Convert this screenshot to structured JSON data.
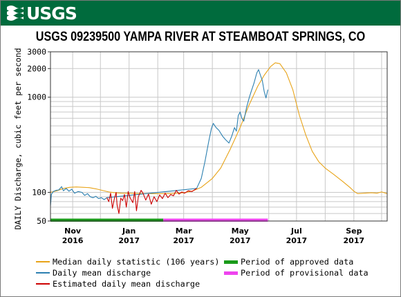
{
  "header": {
    "logo_text": "USGS",
    "logo_icon": "usgs-wave-icon"
  },
  "chart_data": {
    "type": "line",
    "title": "USGS 09239500 YAMPA RIVER AT STEAMBOAT SPRINGS, CO",
    "ylabel": "DAILY Discharge, cubic feet per second",
    "xlabel": "",
    "yscale": "log",
    "ylim": [
      50,
      3000
    ],
    "xlim": [
      "2016-10-08",
      "2017-10-07"
    ],
    "y_ticks": [
      50,
      100,
      1000,
      2000,
      3000
    ],
    "x_ticks": [
      {
        "date": "2016-11-01",
        "label": "Nov",
        "year": "2016"
      },
      {
        "date": "2017-01-01",
        "label": "Jan",
        "year": "2017"
      },
      {
        "date": "2017-03-01",
        "label": "Mar",
        "year": "2017"
      },
      {
        "date": "2017-05-01",
        "label": "May",
        "year": "2017"
      },
      {
        "date": "2017-07-01",
        "label": "Jul",
        "year": "2017"
      },
      {
        "date": "2017-09-01",
        "label": "Sep",
        "year": "2017"
      }
    ],
    "grid": true,
    "legend_position": "bottom",
    "colors": {
      "median": "#e8a317",
      "daily": "#2b7fb0",
      "estimated": "#cc0000",
      "approved": "#1a9a1a",
      "provisional": "#ee44ee"
    },
    "series": [
      {
        "name": "Median daily statistic (106 years)",
        "color": "#e8a317",
        "points": [
          [
            "2016-10-08",
            100
          ],
          [
            "2016-10-15",
            104
          ],
          [
            "2016-10-22",
            110
          ],
          [
            "2016-10-29",
            113
          ],
          [
            "2016-11-05",
            114
          ],
          [
            "2016-11-12",
            113
          ],
          [
            "2016-11-19",
            112
          ],
          [
            "2016-11-26",
            109
          ],
          [
            "2016-12-03",
            105
          ],
          [
            "2016-12-10",
            101
          ],
          [
            "2016-12-17",
            99
          ],
          [
            "2016-12-24",
            98
          ],
          [
            "2016-12-31",
            98
          ],
          [
            "2017-01-15",
            97
          ],
          [
            "2017-02-01",
            97
          ],
          [
            "2017-02-15",
            97
          ],
          [
            "2017-03-01",
            99
          ],
          [
            "2017-03-10",
            103
          ],
          [
            "2017-03-20",
            113
          ],
          [
            "2017-04-01",
            140
          ],
          [
            "2017-04-10",
            180
          ],
          [
            "2017-04-20",
            280
          ],
          [
            "2017-05-01",
            480
          ],
          [
            "2017-05-10",
            800
          ],
          [
            "2017-05-20",
            1300
          ],
          [
            "2017-05-27",
            1700
          ],
          [
            "2017-06-03",
            2100
          ],
          [
            "2017-06-08",
            2300
          ],
          [
            "2017-06-13",
            2250
          ],
          [
            "2017-06-20",
            1800
          ],
          [
            "2017-06-27",
            1200
          ],
          [
            "2017-07-04",
            650
          ],
          [
            "2017-07-11",
            400
          ],
          [
            "2017-07-18",
            270
          ],
          [
            "2017-07-25",
            210
          ],
          [
            "2017-08-01",
            180
          ],
          [
            "2017-08-10",
            155
          ],
          [
            "2017-08-20",
            130
          ],
          [
            "2017-08-28",
            112
          ],
          [
            "2017-09-01",
            103
          ],
          [
            "2017-09-05",
            97
          ],
          [
            "2017-09-12",
            98
          ],
          [
            "2017-09-20",
            99
          ],
          [
            "2017-09-26",
            98
          ],
          [
            "2017-10-01",
            101
          ],
          [
            "2017-10-07",
            97
          ]
        ]
      },
      {
        "name": "Daily mean discharge",
        "color": "#2b7fb0",
        "points": [
          [
            "2016-10-08",
            72
          ],
          [
            "2016-10-09",
            95
          ],
          [
            "2016-10-11",
            102
          ],
          [
            "2016-10-14",
            105
          ],
          [
            "2016-10-17",
            106
          ],
          [
            "2016-10-20",
            115
          ],
          [
            "2016-10-22",
            104
          ],
          [
            "2016-10-25",
            110
          ],
          [
            "2016-10-28",
            103
          ],
          [
            "2016-10-31",
            108
          ],
          [
            "2016-11-03",
            98
          ],
          [
            "2016-11-07",
            102
          ],
          [
            "2016-11-11",
            100
          ],
          [
            "2016-11-14",
            93
          ],
          [
            "2016-11-17",
            97
          ],
          [
            "2016-11-20",
            90
          ],
          [
            "2016-11-23",
            88
          ],
          [
            "2016-11-26",
            91
          ],
          [
            "2016-11-29",
            86
          ],
          [
            "2016-12-02",
            88
          ],
          [
            "2016-12-05",
            84
          ],
          [
            "2016-12-08",
            88
          ],
          [
            "2017-03-15",
            110
          ],
          [
            "2017-03-20",
            140
          ],
          [
            "2017-03-24",
            210
          ],
          [
            "2017-03-28",
            340
          ],
          [
            "2017-03-31",
            470
          ],
          [
            "2017-04-02",
            530
          ],
          [
            "2017-04-05",
            480
          ],
          [
            "2017-04-08",
            450
          ],
          [
            "2017-04-12",
            390
          ],
          [
            "2017-04-15",
            360
          ],
          [
            "2017-04-19",
            330
          ],
          [
            "2017-04-22",
            390
          ],
          [
            "2017-04-25",
            480
          ],
          [
            "2017-04-27",
            440
          ],
          [
            "2017-04-29",
            640
          ],
          [
            "2017-05-01",
            700
          ],
          [
            "2017-05-03",
            600
          ],
          [
            "2017-05-05",
            560
          ],
          [
            "2017-05-08",
            780
          ],
          [
            "2017-05-11",
            1000
          ],
          [
            "2017-05-13",
            1150
          ],
          [
            "2017-05-16",
            1400
          ],
          [
            "2017-05-19",
            1800
          ],
          [
            "2017-05-21",
            1950
          ],
          [
            "2017-05-23",
            1700
          ],
          [
            "2017-05-25",
            1500
          ],
          [
            "2017-05-27",
            1150
          ],
          [
            "2017-05-29",
            980
          ],
          [
            "2017-05-31",
            1200
          ]
        ]
      },
      {
        "name": "Estimated daily mean discharge",
        "color": "#cc0000",
        "points": [
          [
            "2016-12-08",
            88
          ],
          [
            "2016-12-10",
            80
          ],
          [
            "2016-12-12",
            98
          ],
          [
            "2016-12-14",
            68
          ],
          [
            "2016-12-16",
            85
          ],
          [
            "2016-12-18",
            100
          ],
          [
            "2016-12-19",
            74
          ],
          [
            "2016-12-21",
            60
          ],
          [
            "2016-12-23",
            87
          ],
          [
            "2016-12-25",
            82
          ],
          [
            "2016-12-27",
            95
          ],
          [
            "2016-12-29",
            70
          ],
          [
            "2016-12-31",
            102
          ],
          [
            "2017-01-02",
            88
          ],
          [
            "2017-01-05",
            78
          ],
          [
            "2017-01-07",
            102
          ],
          [
            "2017-01-09",
            64
          ],
          [
            "2017-01-11",
            90
          ],
          [
            "2017-01-14",
            105
          ],
          [
            "2017-01-16",
            98
          ],
          [
            "2017-01-19",
            83
          ],
          [
            "2017-01-22",
            96
          ],
          [
            "2017-01-25",
            75
          ],
          [
            "2017-01-28",
            90
          ],
          [
            "2017-01-31",
            80
          ],
          [
            "2017-02-03",
            94
          ],
          [
            "2017-02-06",
            86
          ],
          [
            "2017-02-09",
            98
          ],
          [
            "2017-02-12",
            88
          ],
          [
            "2017-02-15",
            95
          ],
          [
            "2017-02-18",
            92
          ],
          [
            "2017-02-21",
            105
          ],
          [
            "2017-02-24",
            96
          ],
          [
            "2017-02-27",
            101
          ],
          [
            "2017-03-02",
            98
          ],
          [
            "2017-03-06",
            104
          ],
          [
            "2017-03-10",
            102
          ],
          [
            "2017-03-15",
            110
          ]
        ]
      }
    ],
    "periods": [
      {
        "name": "Period of approved data",
        "color": "#1a9a1a",
        "start": "2016-10-08",
        "end": "2017-02-07"
      },
      {
        "name": "Period of provisional data",
        "color": "#ee44ee",
        "start": "2017-02-07",
        "end": "2017-05-31"
      }
    ]
  },
  "legend": {
    "median_label": "Median daily statistic (106 years)",
    "daily_label": "Daily mean discharge",
    "estimated_label": "Estimated daily mean discharge",
    "approved_label": "Period of approved data",
    "provisional_label": "Period of provisional data"
  }
}
